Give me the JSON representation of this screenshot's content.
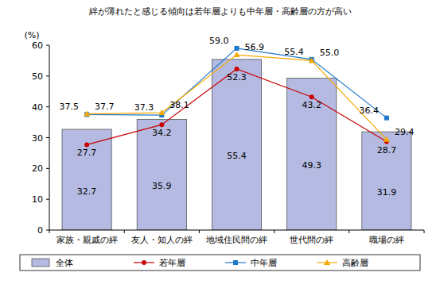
{
  "chart_data": {
    "type": "bar",
    "title": "絆が薄れたと感じる傾向は若年層よりも中年層・高齢層の方が高い",
    "y_label": "(%)",
    "categories": [
      "家族・親戚の絆",
      "友人・知人の絆",
      "地域住民間の絆",
      "世代間の絆",
      "職場の絆"
    ],
    "series": [
      {
        "name": "全体",
        "type": "bar",
        "color": "#b4bae2",
        "values": [
          32.7,
          35.9,
          55.4,
          49.3,
          31.9
        ]
      },
      {
        "name": "若年層",
        "type": "line",
        "marker": "circle",
        "color": "#cc0000",
        "values": [
          27.7,
          34.2,
          52.3,
          43.2,
          28.7
        ]
      },
      {
        "name": "中年層",
        "type": "line",
        "marker": "square",
        "color": "#1f78c8",
        "values": [
          37.5,
          37.3,
          59.0,
          55.4,
          36.4
        ]
      },
      {
        "name": "高齢層",
        "type": "line",
        "marker": "triangle",
        "color": "#f5a800",
        "values": [
          37.7,
          38.1,
          56.9,
          55.0,
          29.4
        ]
      }
    ],
    "ylim": [
      0,
      60
    ],
    "yticks": [
      0,
      10,
      20,
      30,
      40,
      50,
      60
    ],
    "data_labels": true,
    "legend": "bottom"
  }
}
